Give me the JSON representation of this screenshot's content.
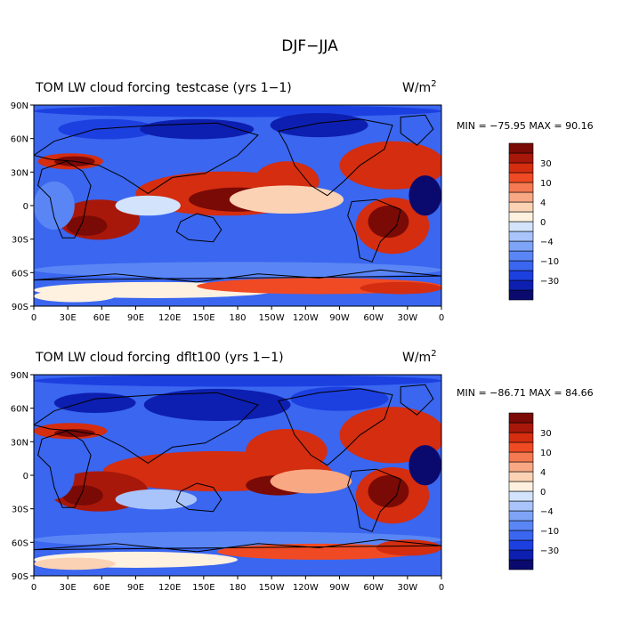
{
  "title": "DJF−JJA",
  "colormap": {
    "colors": [
      "#0a0a6e",
      "#0d1fb0",
      "#1c3fe0",
      "#3a66f0",
      "#5a86f5",
      "#7ea4f7",
      "#a8c4fa",
      "#d3e3fc",
      "#fff1e0",
      "#fcd2b5",
      "#f8a883",
      "#f57a52",
      "#f04a24",
      "#d42d10",
      "#a8180a",
      "#7a0a05"
    ],
    "labels": [
      "−30",
      "−10",
      "−4",
      "0",
      "4",
      "10",
      "30"
    ]
  },
  "panels": [
    {
      "title_left": "TOM LW cloud forcing",
      "title_center": "testcase (yrs 1−1)",
      "units": "W/m",
      "units_sup": "2",
      "minmax": "MIN = −75.95  MAX =  90.16",
      "y_ticks": [
        "90N",
        "60N",
        "30N",
        "0",
        "30S",
        "60S",
        "90S"
      ],
      "x_ticks": [
        "0",
        "30E",
        "60E",
        "90E",
        "120E",
        "150E",
        "180",
        "150W",
        "120W",
        "90W",
        "60W",
        "30W",
        "0"
      ]
    },
    {
      "title_left": "TOM LW cloud forcing",
      "title_center": "dflt100 (yrs 1−1)",
      "units": "W/m",
      "units_sup": "2",
      "minmax": "MIN = −86.71  MAX =  84.66",
      "y_ticks": [
        "90N",
        "60N",
        "30N",
        "0",
        "30S",
        "60S",
        "90S"
      ],
      "x_ticks": [
        "0",
        "30E",
        "60E",
        "90E",
        "120E",
        "150E",
        "180",
        "150W",
        "120W",
        "90W",
        "60W",
        "30W",
        "0"
      ]
    }
  ]
}
